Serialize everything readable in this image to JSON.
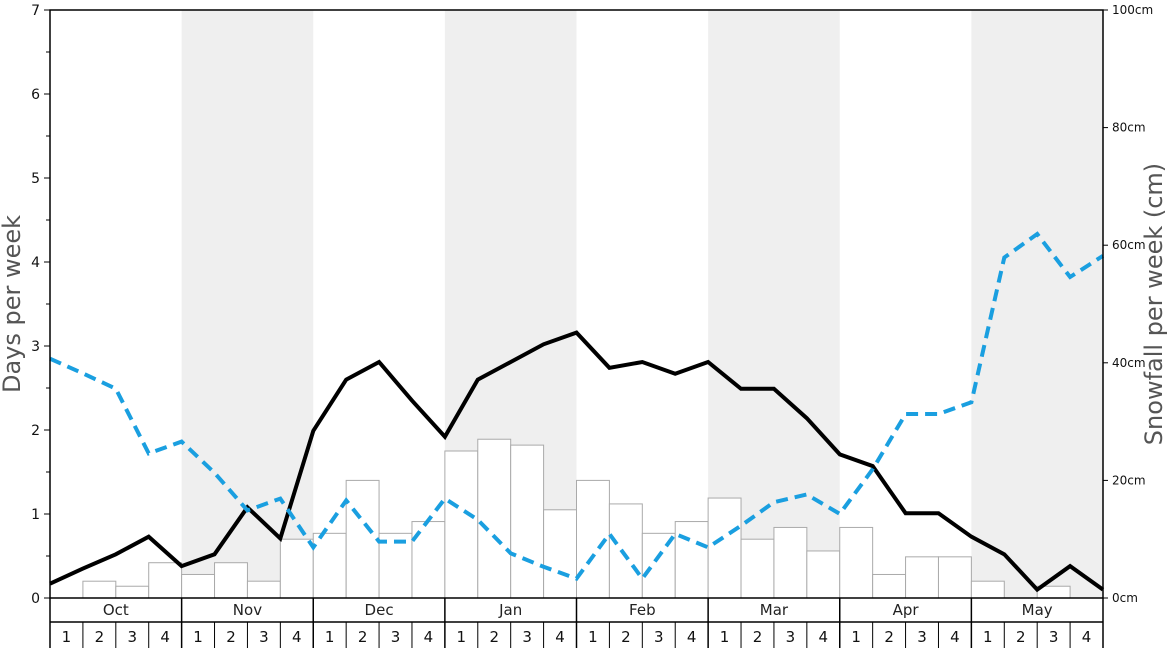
{
  "chart_data": {
    "type": "bar",
    "months": [
      "Oct",
      "Nov",
      "Dec",
      "Jan",
      "Feb",
      "Mar",
      "Apr",
      "May"
    ],
    "weeks": [
      "1",
      "2",
      "3",
      "4"
    ],
    "ylabel": "Days per week",
    "y2label": "Snowfall per week (cm)",
    "ylim": [
      0,
      7
    ],
    "y_ticks": [
      "0",
      "1",
      "2",
      "3",
      "4",
      "5",
      "6",
      "7"
    ],
    "y2lim": [
      0,
      100
    ],
    "y2_ticks": [
      "0cm",
      "20cm",
      "40cm",
      "60cm",
      "80cm",
      "100cm"
    ],
    "grid": false,
    "series": [
      {
        "kind": "bar",
        "axis": "y",
        "values": [
          0,
          0.2,
          0.14,
          0.42,
          0.28,
          0.42,
          0.2,
          0.7,
          0.77,
          1.4,
          0.77,
          0.91,
          1.75,
          1.89,
          1.82,
          1.05,
          1.4,
          1.12,
          0.77,
          0.91,
          1.19,
          0.7,
          0.84,
          0.56,
          0.84,
          0.28,
          0.49,
          0.49,
          0.2,
          0,
          0.14,
          0
        ]
      },
      {
        "kind": "line",
        "axis": "y",
        "style": "solid",
        "color": "#000000",
        "values": [
          0.17,
          0.35,
          0.52,
          0.73,
          0.38,
          0.52,
          1.08,
          0.71,
          1.99,
          2.6,
          2.81,
          2.35,
          1.92,
          2.6,
          2.81,
          3.02,
          3.16,
          2.74,
          2.81,
          2.67,
          2.81,
          2.49,
          2.49,
          2.14,
          1.71,
          1.57,
          1.01,
          1.01,
          0.73,
          0.52,
          0.1,
          0.38,
          0.1
        ]
      },
      {
        "kind": "line",
        "axis": "y2",
        "style": "dashed",
        "color": "#1a9fe0",
        "values": [
          40.7,
          38.2,
          35.6,
          24.6,
          26.6,
          21.3,
          14.9,
          16.9,
          8.6,
          16.6,
          9.6,
          9.6,
          16.9,
          13.3,
          7.6,
          5.3,
          3.3,
          10.9,
          3.3,
          10.9,
          8.6,
          12.3,
          16.3,
          17.6,
          14.3,
          21.9,
          31.3,
          31.3,
          33.3,
          57.9,
          61.9,
          54.6,
          58.2
        ]
      }
    ]
  },
  "colors": {
    "band": "#efefef",
    "bar_fill": "#ffffff",
    "bar_stroke": "#aaaaaa",
    "axis": "#000000"
  }
}
